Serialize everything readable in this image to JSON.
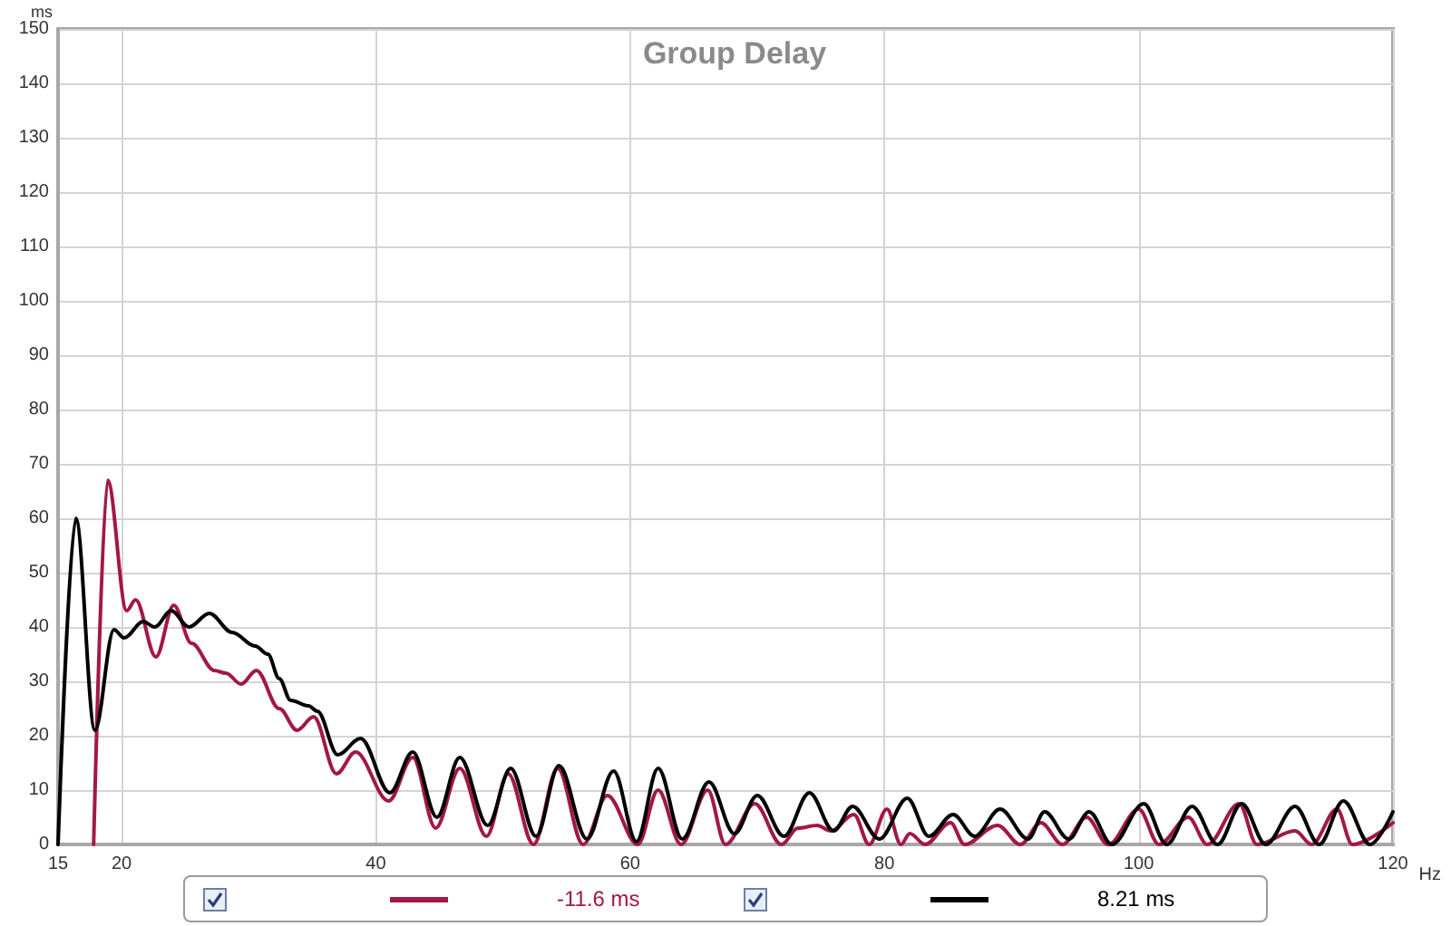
{
  "chart_data": {
    "type": "line",
    "title": "Group Delay",
    "xlabel": "Hz",
    "ylabel": "ms",
    "xlim": [
      15,
      120
    ],
    "xticks": [
      15,
      20,
      40,
      60,
      80,
      100,
      120
    ],
    "ylim": [
      0,
      150
    ],
    "yticks": [
      0,
      10,
      20,
      30,
      40,
      50,
      60,
      70,
      80,
      90,
      100,
      110,
      120,
      130,
      140,
      150
    ],
    "grid": true,
    "marker": "none",
    "line_style": "solid",
    "series": [
      {
        "color": "#a3174a",
        "x": [
          17.8,
          18.9,
          20.4,
          21.1,
          22.7,
          24.1,
          25.5,
          27.3,
          28.2,
          29.4,
          30.6,
          32.4,
          33.8,
          35.1,
          36.9,
          38.4,
          41,
          42.9,
          44.7,
          46.6,
          48.7,
          50.4,
          52.4,
          54.3,
          56.3,
          58.2,
          60.6,
          62.2,
          64,
          66.1,
          67.5,
          69.8,
          71.9,
          73.2,
          74.7,
          75.8,
          77.6,
          78.8,
          80.2,
          81.3,
          82,
          83.2,
          85.2,
          86.3,
          88.9,
          90.7,
          92.3,
          94,
          95.9,
          97.6,
          100,
          101.6,
          103.9,
          105.4,
          107.9,
          109.3,
          112.3,
          113.6,
          115.6,
          116.8,
          120
        ],
        "values": [
          0,
          67,
          43,
          45,
          34.5,
          44,
          37,
          32,
          31.5,
          29.5,
          32,
          25,
          21,
          23.5,
          13,
          17,
          8,
          16,
          3,
          14,
          1.5,
          13,
          0,
          14,
          0,
          9,
          0,
          10,
          0,
          10,
          0,
          7.5,
          0,
          3,
          3.5,
          2.5,
          5.5,
          0,
          6.5,
          0,
          2,
          0,
          4,
          0,
          3.5,
          0,
          4,
          0,
          5,
          0,
          6.5,
          0,
          5,
          0,
          7.5,
          0,
          2.5,
          0,
          6.5,
          0,
          4
        ]
      },
      {
        "color": "#000000",
        "x": [
          15,
          16.4,
          17.9,
          19.4,
          20.2,
          21.7,
          22.6,
          23.9,
          25.3,
          26.9,
          28.7,
          30.5,
          31.5,
          32.4,
          33.3,
          34.7,
          35.4,
          37,
          38.8,
          41.1,
          42.9,
          44.8,
          46.6,
          48.8,
          50.6,
          52.6,
          54.4,
          56.6,
          58.7,
          60.5,
          62.2,
          64.1,
          66.2,
          68.2,
          70,
          72.1,
          74.1,
          76,
          77.5,
          79.6,
          81.8,
          83.5,
          85.4,
          87.1,
          89.1,
          91.3,
          92.6,
          94.5,
          96.1,
          97.9,
          100.4,
          102.2,
          104.2,
          106.2,
          108.1,
          110,
          112.3,
          114.2,
          116.1,
          118.2,
          120
        ],
        "values": [
          0,
          60,
          21,
          39.5,
          38,
          41,
          40,
          43,
          40,
          42.5,
          39,
          36.5,
          35,
          30.5,
          26.5,
          25.5,
          24.5,
          16.5,
          19.5,
          9.5,
          17,
          5,
          16,
          3.5,
          14,
          1.5,
          14.5,
          1,
          13.5,
          0.5,
          14,
          1,
          11.5,
          2,
          9,
          1.5,
          9.5,
          2.5,
          7,
          1,
          8.5,
          1.5,
          5.5,
          1.5,
          6.5,
          1,
          6,
          1,
          6,
          0,
          7.5,
          0,
          7,
          0,
          7.5,
          0,
          7,
          0,
          8,
          0,
          6
        ]
      }
    ],
    "annotations": [
      "-11.6 ms",
      "8.21 ms"
    ]
  }
}
